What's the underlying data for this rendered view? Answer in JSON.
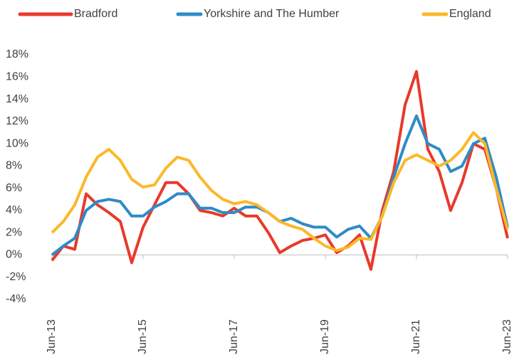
{
  "chart_data": {
    "type": "line",
    "categories": [
      "Jun-13",
      null,
      null,
      null,
      null,
      null,
      null,
      null,
      "Jun-15",
      null,
      null,
      null,
      null,
      null,
      null,
      null,
      "Jun-17",
      null,
      null,
      null,
      null,
      null,
      null,
      null,
      "Jun-19",
      null,
      null,
      null,
      null,
      null,
      null,
      null,
      "Jun-21",
      null,
      null,
      null,
      null,
      null,
      null,
      null,
      "Jun-23"
    ],
    "series": [
      {
        "name": "Bradford",
        "color": "#e8392b",
        "values": [
          -0.5,
          0.8,
          0.5,
          5.5,
          4.5,
          3.8,
          3.0,
          -0.7,
          2.5,
          4.5,
          6.5,
          6.5,
          5.5,
          4.0,
          3.8,
          3.5,
          4.2,
          3.5,
          3.5,
          2.0,
          0.2,
          0.8,
          1.3,
          1.5,
          1.8,
          0.2,
          0.8,
          1.8,
          -1.3,
          4.0,
          7.5,
          13.5,
          16.5,
          9.5,
          7.5,
          4.0,
          6.5,
          10.0,
          9.5,
          6.0,
          1.5
        ]
      },
      {
        "name": "Yorkshire and The Humber",
        "color": "#2e8bc8",
        "values": [
          0,
          0.8,
          1.5,
          4.0,
          4.8,
          5.0,
          4.8,
          3.5,
          3.5,
          4.3,
          4.8,
          5.5,
          5.5,
          4.2,
          4.2,
          3.8,
          3.8,
          4.3,
          4.3,
          3.8,
          3.0,
          3.3,
          2.8,
          2.5,
          2.5,
          1.6,
          2.3,
          2.6,
          1.5,
          3.5,
          7.0,
          10.0,
          12.5,
          10.0,
          9.5,
          7.5,
          8.0,
          10.0,
          10.5,
          7.0,
          2.5
        ]
      },
      {
        "name": "England",
        "color": "#fbb829",
        "values": [
          2.0,
          3.0,
          4.5,
          7.0,
          8.8,
          9.5,
          8.5,
          6.8,
          6.1,
          6.3,
          7.8,
          8.8,
          8.5,
          7.0,
          5.8,
          5.0,
          4.6,
          4.8,
          4.5,
          3.8,
          3.0,
          2.6,
          2.3,
          1.5,
          0.8,
          0.4,
          0.7,
          1.5,
          1.4,
          3.5,
          6.5,
          8.5,
          9.0,
          8.5,
          8.0,
          8.5,
          9.5,
          11.0,
          10.0,
          6.0,
          2.3
        ]
      }
    ],
    "ylim": [
      -4,
      18
    ],
    "yticks": [
      {
        "value": -4,
        "label": "-4%"
      },
      {
        "value": -2,
        "label": "-2%"
      },
      {
        "value": 0,
        "label": "0%"
      },
      {
        "value": 2,
        "label": "2%"
      },
      {
        "value": 4,
        "label": "4%"
      },
      {
        "value": 6,
        "label": "6%"
      },
      {
        "value": 8,
        "label": "8%"
      },
      {
        "value": 10,
        "label": "10%"
      },
      {
        "value": 12,
        "label": "12%"
      },
      {
        "value": 14,
        "label": "14%"
      },
      {
        "value": 16,
        "label": "16%"
      },
      {
        "value": 18,
        "label": "18%"
      }
    ],
    "grid": false,
    "legend": "top"
  }
}
